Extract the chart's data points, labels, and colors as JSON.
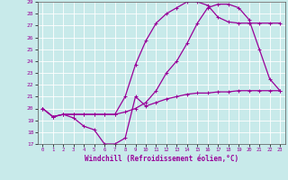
{
  "xlabel": "Windchill (Refroidissement éolien,°C)",
  "xlim": [
    -0.5,
    23.5
  ],
  "ylim": [
    17,
    29
  ],
  "yticks": [
    17,
    18,
    19,
    20,
    21,
    22,
    23,
    24,
    25,
    26,
    27,
    28,
    29
  ],
  "xticks": [
    0,
    1,
    2,
    3,
    4,
    5,
    6,
    7,
    8,
    9,
    10,
    11,
    12,
    13,
    14,
    15,
    16,
    17,
    18,
    19,
    20,
    21,
    22,
    23
  ],
  "line_color": "#990099",
  "bg_color": "#c8eaea",
  "grid_color": "#ffffff",
  "line1_x": [
    0,
    1,
    2,
    3,
    4,
    5,
    6,
    7,
    8,
    9,
    10,
    11,
    12,
    13,
    14,
    15,
    16,
    17,
    18,
    19,
    20,
    21,
    22,
    23
  ],
  "line1_y": [
    20,
    19.3,
    19.5,
    19.2,
    18.5,
    18.2,
    17.0,
    17.0,
    17.5,
    21.0,
    20.2,
    20.5,
    20.8,
    21.0,
    21.2,
    21.3,
    21.3,
    21.4,
    21.4,
    21.5,
    21.5,
    21.5,
    21.5,
    21.5
  ],
  "line2_x": [
    0,
    1,
    2,
    3,
    4,
    5,
    6,
    7,
    8,
    9,
    10,
    11,
    12,
    13,
    14,
    15,
    16,
    17,
    18,
    19,
    20,
    21,
    22,
    23
  ],
  "line2_y": [
    20,
    19.3,
    19.5,
    19.5,
    19.5,
    19.5,
    19.5,
    19.5,
    19.7,
    20.0,
    20.5,
    21.5,
    23.0,
    24.0,
    25.5,
    27.2,
    28.5,
    28.8,
    28.8,
    28.5,
    27.5,
    25.0,
    22.5,
    21.5
  ],
  "line3_x": [
    0,
    1,
    2,
    3,
    4,
    5,
    6,
    7,
    8,
    9,
    10,
    11,
    12,
    13,
    14,
    15,
    16,
    17,
    18,
    19,
    20,
    21,
    22,
    23
  ],
  "line3_y": [
    20,
    19.3,
    19.5,
    19.5,
    19.5,
    19.5,
    19.5,
    19.5,
    21.0,
    23.7,
    25.7,
    27.2,
    28.0,
    28.5,
    29.0,
    29.0,
    28.7,
    27.7,
    27.3,
    27.2,
    27.2,
    27.2,
    27.2,
    27.2
  ]
}
